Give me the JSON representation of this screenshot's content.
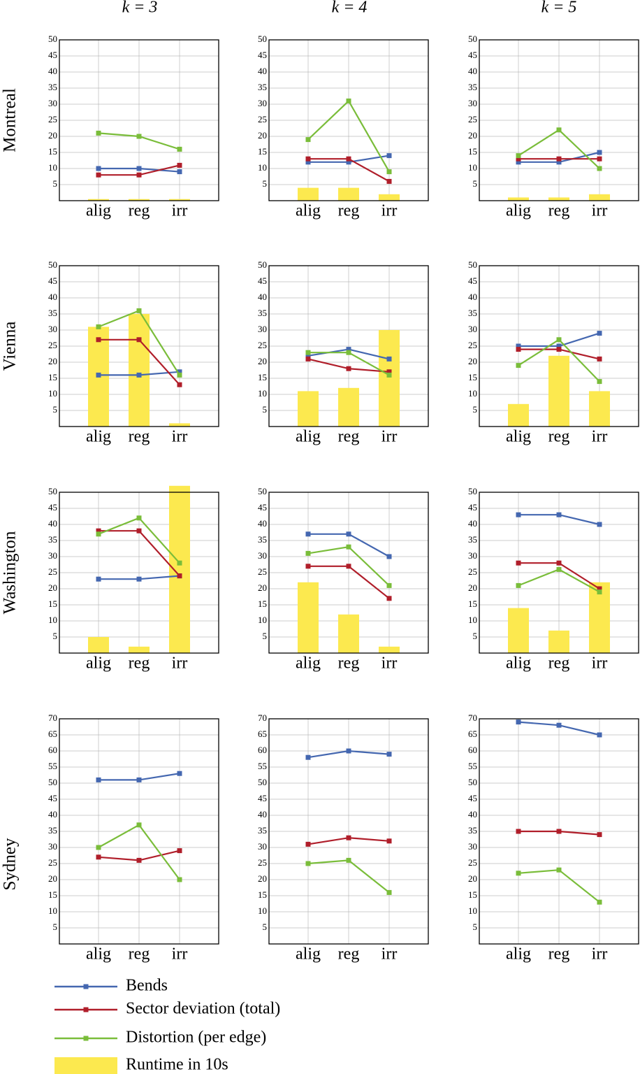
{
  "column_titles": [
    "k = 3",
    "k = 4",
    "k = 5"
  ],
  "row_titles": [
    "Montreal",
    "Vienna",
    "Washington",
    "Sydney"
  ],
  "legend": [
    {
      "name": "Bends",
      "color": "#4467b0",
      "type": "line"
    },
    {
      "name": "Sector deviation (total)",
      "color": "#b01e2a",
      "type": "line"
    },
    {
      "name": "Distortion (per edge)",
      "color": "#7abd3a",
      "type": "line"
    },
    {
      "name": "Runtime in 10s",
      "color": "#fce94f",
      "type": "bar"
    }
  ],
  "chart_data": [
    {
      "type": "line",
      "categories": [
        "alig",
        "reg",
        "irr"
      ],
      "ylim": [
        0,
        50
      ],
      "yticks": [
        5,
        10,
        15,
        20,
        25,
        30,
        35,
        40,
        45,
        50
      ],
      "grid": true,
      "series": [
        {
          "color": "#4467b0",
          "values": [
            10,
            10,
            9
          ]
        },
        {
          "color": "#b01e2a",
          "values": [
            8,
            8,
            11
          ]
        },
        {
          "color": "#7abd3a",
          "values": [
            21,
            20,
            16
          ]
        },
        {
          "color": "#fce94f",
          "type": "bar",
          "values": [
            0.5,
            0.5,
            0.5
          ]
        }
      ]
    },
    {
      "type": "line",
      "categories": [
        "alig",
        "reg",
        "irr"
      ],
      "ylim": [
        0,
        50
      ],
      "yticks": [
        5,
        10,
        15,
        20,
        25,
        30,
        35,
        40,
        45,
        50
      ],
      "grid": true,
      "series": [
        {
          "color": "#4467b0",
          "values": [
            12,
            12,
            14
          ]
        },
        {
          "color": "#b01e2a",
          "values": [
            13,
            13,
            6
          ]
        },
        {
          "color": "#7abd3a",
          "values": [
            19,
            31,
            9
          ]
        },
        {
          "color": "#fce94f",
          "type": "bar",
          "values": [
            4,
            4,
            2
          ]
        }
      ]
    },
    {
      "type": "line",
      "categories": [
        "alig",
        "reg",
        "irr"
      ],
      "ylim": [
        0,
        50
      ],
      "yticks": [
        5,
        10,
        15,
        20,
        25,
        30,
        35,
        40,
        45,
        50
      ],
      "grid": true,
      "series": [
        {
          "color": "#4467b0",
          "values": [
            12,
            12,
            15
          ]
        },
        {
          "color": "#b01e2a",
          "values": [
            13,
            13,
            13
          ]
        },
        {
          "color": "#7abd3a",
          "values": [
            14,
            22,
            10
          ]
        },
        {
          "color": "#fce94f",
          "type": "bar",
          "values": [
            1,
            1,
            2
          ]
        }
      ]
    },
    {
      "type": "line",
      "categories": [
        "alig",
        "reg",
        "irr"
      ],
      "ylim": [
        0,
        50
      ],
      "yticks": [
        5,
        10,
        15,
        20,
        25,
        30,
        35,
        40,
        45,
        50
      ],
      "grid": true,
      "series": [
        {
          "color": "#4467b0",
          "values": [
            16,
            16,
            17
          ]
        },
        {
          "color": "#b01e2a",
          "values": [
            27,
            27,
            13
          ]
        },
        {
          "color": "#7abd3a",
          "values": [
            31,
            36,
            16
          ]
        },
        {
          "color": "#fce94f",
          "type": "bar",
          "values": [
            31,
            35,
            1
          ]
        }
      ]
    },
    {
      "type": "line",
      "categories": [
        "alig",
        "reg",
        "irr"
      ],
      "ylim": [
        0,
        50
      ],
      "yticks": [
        5,
        10,
        15,
        20,
        25,
        30,
        35,
        40,
        45,
        50
      ],
      "grid": true,
      "series": [
        {
          "color": "#4467b0",
          "values": [
            22,
            24,
            21
          ]
        },
        {
          "color": "#b01e2a",
          "values": [
            21,
            18,
            17
          ]
        },
        {
          "color": "#7abd3a",
          "values": [
            23,
            23,
            16
          ]
        },
        {
          "color": "#fce94f",
          "type": "bar",
          "values": [
            11,
            12,
            30
          ]
        }
      ]
    },
    {
      "type": "line",
      "categories": [
        "alig",
        "reg",
        "irr"
      ],
      "ylim": [
        0,
        50
      ],
      "yticks": [
        5,
        10,
        15,
        20,
        25,
        30,
        35,
        40,
        45,
        50
      ],
      "grid": true,
      "series": [
        {
          "color": "#4467b0",
          "values": [
            25,
            25,
            29
          ]
        },
        {
          "color": "#b01e2a",
          "values": [
            24,
            24,
            21
          ]
        },
        {
          "color": "#7abd3a",
          "values": [
            19,
            27,
            14
          ]
        },
        {
          "color": "#fce94f",
          "type": "bar",
          "values": [
            7,
            22,
            11
          ]
        }
      ]
    },
    {
      "type": "line",
      "categories": [
        "alig",
        "reg",
        "irr"
      ],
      "ylim": [
        0,
        50
      ],
      "yticks": [
        5,
        10,
        15,
        20,
        25,
        30,
        35,
        40,
        45,
        50
      ],
      "grid": true,
      "series": [
        {
          "color": "#4467b0",
          "values": [
            23,
            23,
            24
          ]
        },
        {
          "color": "#b01e2a",
          "values": [
            38,
            38,
            24
          ]
        },
        {
          "color": "#7abd3a",
          "values": [
            37,
            42,
            28
          ]
        },
        {
          "color": "#fce94f",
          "type": "bar",
          "values": [
            5,
            2,
            52
          ]
        }
      ]
    },
    {
      "type": "line",
      "categories": [
        "alig",
        "reg",
        "irr"
      ],
      "ylim": [
        0,
        50
      ],
      "yticks": [
        5,
        10,
        15,
        20,
        25,
        30,
        35,
        40,
        45,
        50
      ],
      "grid": true,
      "series": [
        {
          "color": "#4467b0",
          "values": [
            37,
            37,
            30
          ]
        },
        {
          "color": "#b01e2a",
          "values": [
            27,
            27,
            17
          ]
        },
        {
          "color": "#7abd3a",
          "values": [
            31,
            33,
            21
          ]
        },
        {
          "color": "#fce94f",
          "type": "bar",
          "values": [
            22,
            12,
            2
          ]
        }
      ]
    },
    {
      "type": "line",
      "categories": [
        "alig",
        "reg",
        "irr"
      ],
      "ylim": [
        0,
        50
      ],
      "yticks": [
        5,
        10,
        15,
        20,
        25,
        30,
        35,
        40,
        45,
        50
      ],
      "grid": true,
      "series": [
        {
          "color": "#4467b0",
          "values": [
            43,
            43,
            40
          ]
        },
        {
          "color": "#b01e2a",
          "values": [
            28,
            28,
            20
          ]
        },
        {
          "color": "#7abd3a",
          "values": [
            21,
            26,
            19
          ]
        },
        {
          "color": "#fce94f",
          "type": "bar",
          "values": [
            14,
            7,
            22
          ]
        }
      ]
    },
    {
      "type": "line",
      "categories": [
        "alig",
        "reg",
        "irr"
      ],
      "ylim": [
        0,
        70
      ],
      "yticks": [
        5,
        10,
        15,
        20,
        25,
        30,
        35,
        40,
        45,
        50,
        55,
        60,
        65,
        70
      ],
      "grid": true,
      "series": [
        {
          "color": "#4467b0",
          "values": [
            51,
            51,
            53
          ]
        },
        {
          "color": "#b01e2a",
          "values": [
            27,
            26,
            29
          ]
        },
        {
          "color": "#7abd3a",
          "values": [
            30,
            37,
            20
          ]
        }
      ]
    },
    {
      "type": "line",
      "categories": [
        "alig",
        "reg",
        "irr"
      ],
      "ylim": [
        0,
        70
      ],
      "yticks": [
        5,
        10,
        15,
        20,
        25,
        30,
        35,
        40,
        45,
        50,
        55,
        60,
        65,
        70
      ],
      "grid": true,
      "series": [
        {
          "color": "#4467b0",
          "values": [
            58,
            60,
            59
          ]
        },
        {
          "color": "#b01e2a",
          "values": [
            31,
            33,
            32
          ]
        },
        {
          "color": "#7abd3a",
          "values": [
            25,
            26,
            16
          ]
        }
      ]
    },
    {
      "type": "line",
      "categories": [
        "alig",
        "reg",
        "irr"
      ],
      "ylim": [
        0,
        70
      ],
      "yticks": [
        5,
        10,
        15,
        20,
        25,
        30,
        35,
        40,
        45,
        50,
        55,
        60,
        65,
        70
      ],
      "grid": true,
      "series": [
        {
          "color": "#4467b0",
          "values": [
            69,
            68,
            65
          ]
        },
        {
          "color": "#b01e2a",
          "values": [
            35,
            35,
            34
          ]
        },
        {
          "color": "#7abd3a",
          "values": [
            22,
            23,
            13
          ]
        }
      ]
    }
  ]
}
